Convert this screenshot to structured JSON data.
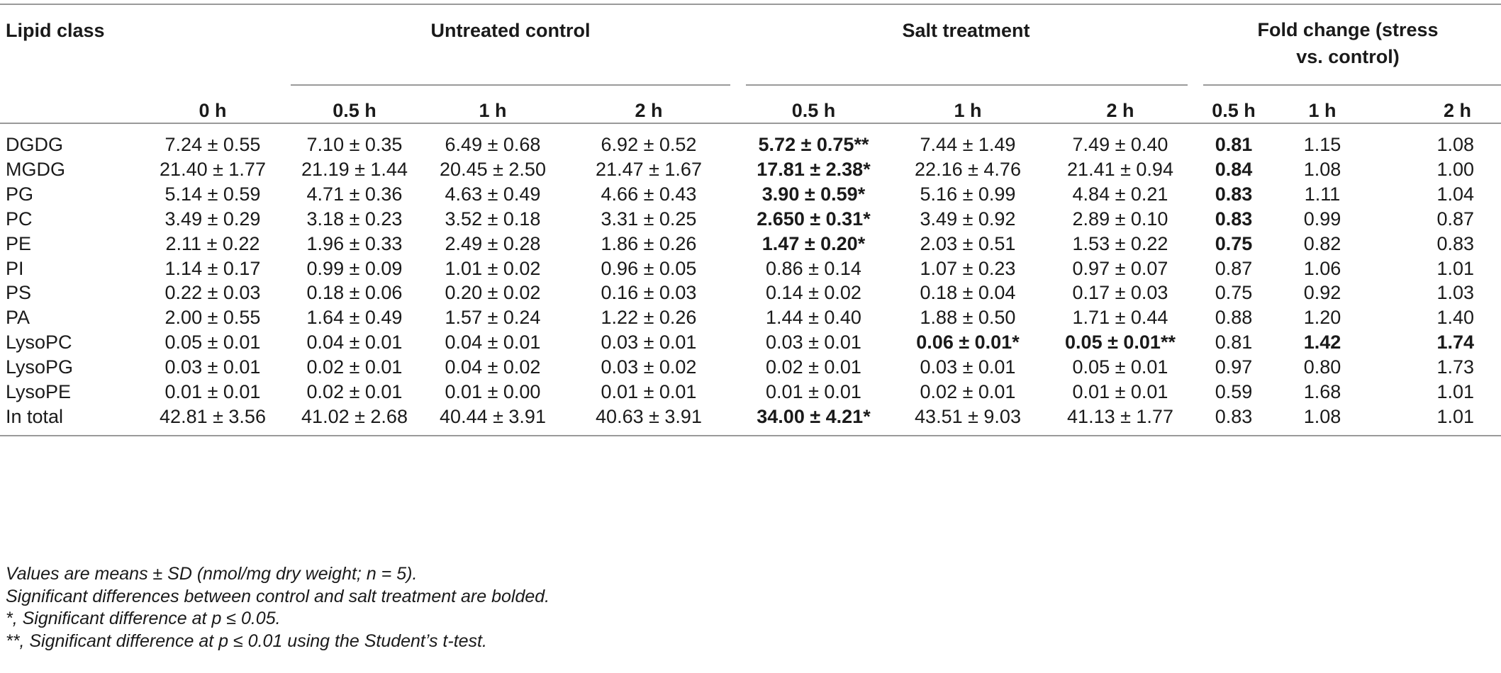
{
  "headers": {
    "lipid_class": "Lipid class",
    "untreated": "Untreated control",
    "salt": "Salt treatment",
    "fold_line1": "Fold change (stress",
    "fold_line2": "vs. control)",
    "cols": [
      "0 h",
      "0.5 h",
      "1 h",
      "2 h",
      "0.5 h",
      "1 h",
      "2 h",
      "0.5 h",
      "1 h",
      "2 h"
    ]
  },
  "rows": [
    {
      "name": "DGDG",
      "v": [
        "7.24 ± 0.55",
        "7.10 ± 0.35",
        "6.49 ± 0.68",
        "6.92 ± 0.52",
        "5.72 ± 0.75**",
        "7.44 ± 1.49",
        "7.49 ± 0.40",
        "0.81",
        "1.15",
        "1.08"
      ]
    },
    {
      "name": "MGDG",
      "v": [
        "21.40 ± 1.77",
        "21.19 ± 1.44",
        "20.45 ± 2.50",
        "21.47 ± 1.67",
        "17.81 ± 2.38*",
        "22.16 ± 4.76",
        "21.41 ± 0.94",
        "0.84",
        "1.08",
        "1.00"
      ]
    },
    {
      "name": "PG",
      "v": [
        "5.14 ± 0.59",
        "4.71 ± 0.36",
        "4.63 ± 0.49",
        "4.66 ± 0.43",
        "3.90 ± 0.59*",
        "5.16 ± 0.99",
        "4.84 ± 0.21",
        "0.83",
        "1.11",
        "1.04"
      ]
    },
    {
      "name": "PC",
      "v": [
        "3.49 ± 0.29",
        "3.18 ± 0.23",
        "3.52 ± 0.18",
        "3.31 ± 0.25",
        "2.650 ± 0.31*",
        "3.49 ± 0.92",
        "2.89 ± 0.10",
        "0.83",
        "0.99",
        "0.87"
      ]
    },
    {
      "name": "PE",
      "v": [
        "2.11 ± 0.22",
        "1.96 ± 0.33",
        "2.49 ± 0.28",
        "1.86 ± 0.26",
        "1.47 ± 0.20*",
        "2.03 ± 0.51",
        "1.53 ± 0.22",
        "0.75",
        "0.82",
        "0.83"
      ]
    },
    {
      "name": "PI",
      "v": [
        "1.14 ± 0.17",
        "0.99 ± 0.09",
        "1.01 ± 0.02",
        "0.96 ± 0.05",
        "0.86 ± 0.14",
        "1.07 ± 0.23",
        "0.97 ± 0.07",
        "0.87",
        "1.06",
        "1.01"
      ]
    },
    {
      "name": "PS",
      "v": [
        "0.22 ± 0.03",
        "0.18 ± 0.06",
        "0.20 ± 0.02",
        "0.16 ± 0.03",
        "0.14 ± 0.02",
        "0.18 ± 0.04",
        "0.17 ± 0.03",
        "0.75",
        "0.92",
        "1.03"
      ]
    },
    {
      "name": "PA",
      "v": [
        "2.00 ± 0.55",
        "1.64 ± 0.49",
        "1.57 ± 0.24",
        "1.22 ± 0.26",
        "1.44 ± 0.40",
        "1.88 ± 0.50",
        "1.71 ± 0.44",
        "0.88",
        "1.20",
        "1.40"
      ]
    },
    {
      "name": "LysoPC",
      "v": [
        "0.05 ± 0.01",
        "0.04 ± 0.01",
        "0.04 ± 0.01",
        "0.03 ± 0.01",
        "0.03 ± 0.01",
        "0.06 ± 0.01*",
        "0.05 ± 0.01**",
        "0.81",
        "1.42",
        "1.74"
      ]
    },
    {
      "name": "LysoPG",
      "v": [
        "0.03 ± 0.01",
        "0.02 ± 0.01",
        "0.04 ± 0.02",
        "0.03 ± 0.02",
        "0.02 ± 0.01",
        "0.03 ± 0.01",
        "0.05 ± 0.01",
        "0.97",
        "0.80",
        "1.73"
      ]
    },
    {
      "name": "LysoPE",
      "v": [
        "0.01 ± 0.01",
        "0.02 ± 0.01",
        "0.01 ± 0.00",
        "0.01 ± 0.01",
        "0.01 ± 0.01",
        "0.02 ± 0.01",
        "0.01 ± 0.01",
        "0.59",
        "1.68",
        "1.01"
      ]
    },
    {
      "name": "In total",
      "v": [
        "42.81 ± 3.56",
        "41.02 ± 2.68",
        "40.44 ± 3.91",
        "40.63 ± 3.91",
        "34.00 ± 4.21*",
        "43.51 ± 9.03",
        "41.13 ± 1.77",
        "0.83",
        "1.08",
        "1.01"
      ]
    }
  ],
  "notes": [
    "Values are means ± SD (nmol/mg dry weight; n = 5).",
    "Significant differences between control and salt treatment are bolded.",
    "*, Significant difference at p ≤ 0.05.",
    "**, Significant difference at p ≤ 0.01 using the Student’s t-test."
  ]
}
